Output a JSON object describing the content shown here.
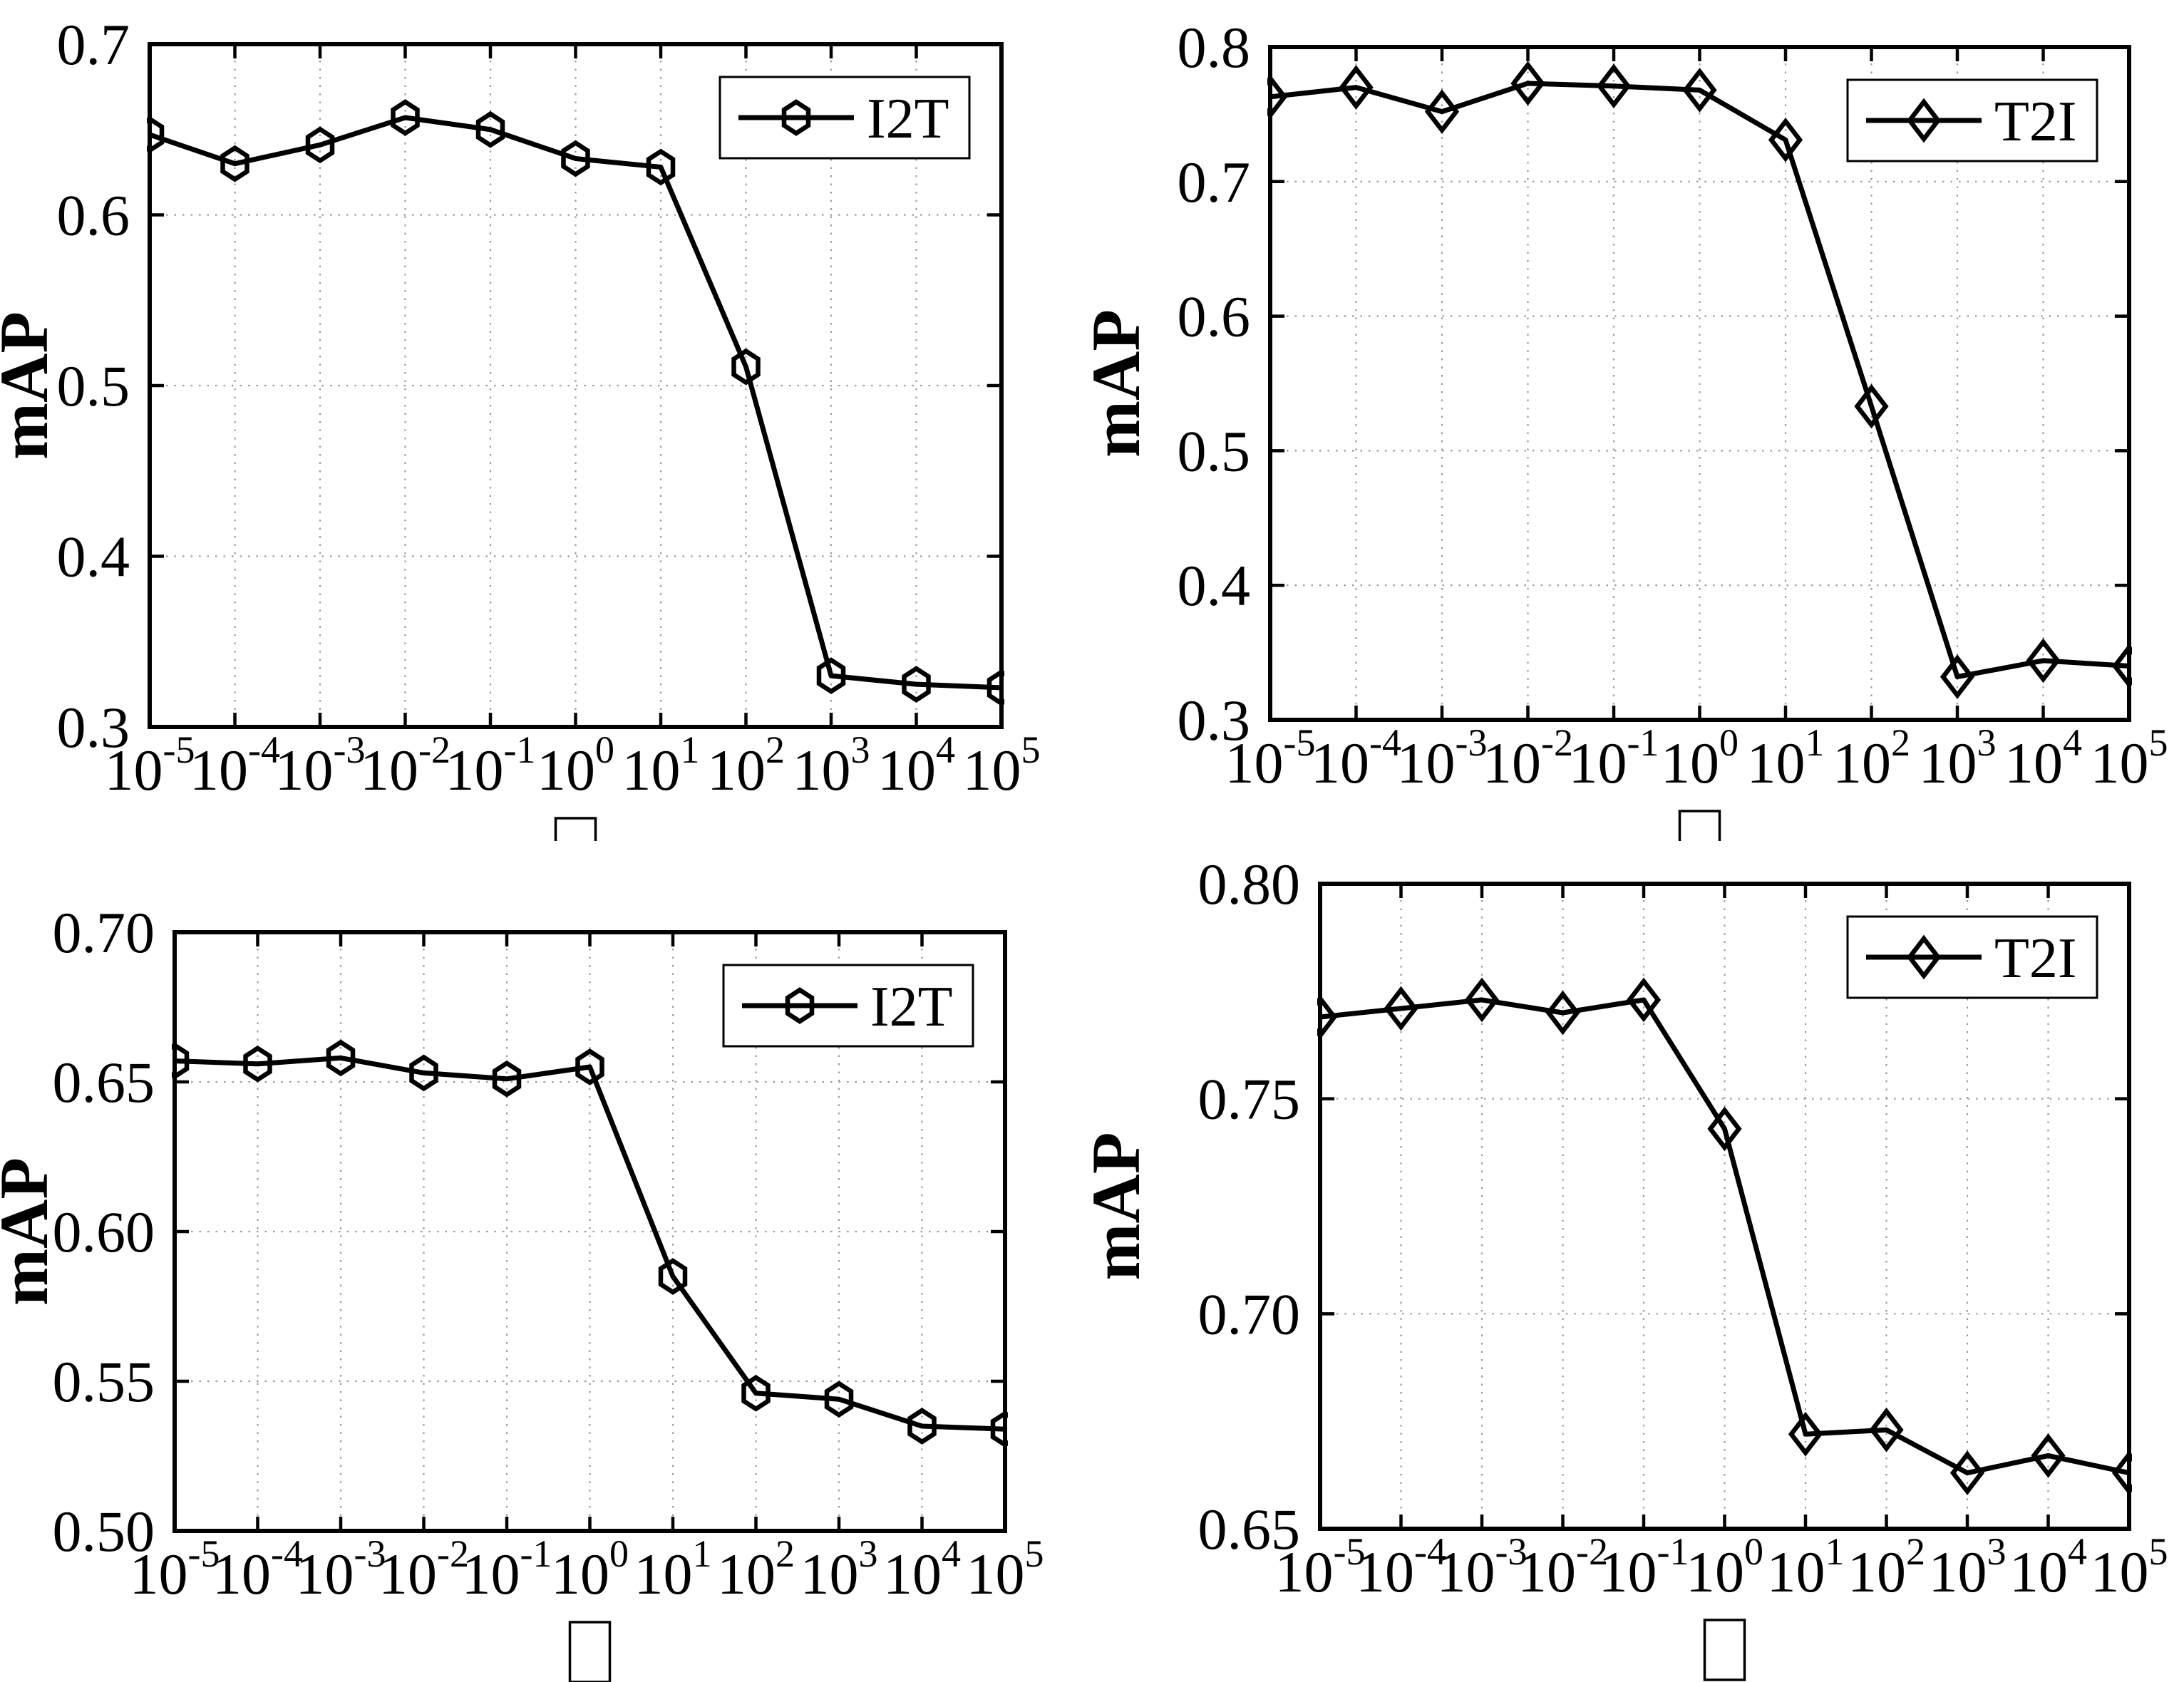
{
  "figure": {
    "background_color": "#ffffff",
    "line_color": "#000000",
    "grid_color": "#9a9a9a",
    "ylabel": "mAP",
    "x_tick_base": "10",
    "x_tick_exponents": [
      -5,
      -4,
      -3,
      -2,
      -1,
      0,
      1,
      2,
      3,
      4,
      5
    ],
    "xlabel_symbol": "□"
  },
  "chart_data": [
    {
      "id": "top-left",
      "type": "line",
      "legend": "I2T",
      "legend_position": "upper right",
      "marker": "hexagon",
      "ylabel": "mAP",
      "xlabel": "□",
      "x_scale": "log",
      "x": [
        1e-05,
        0.0001,
        0.001,
        0.01,
        0.1,
        1,
        10,
        100,
        1000,
        10000,
        100000
      ],
      "x_tick_labels": [
        "10^-5",
        "10^-4",
        "10^-3",
        "10^-2",
        "10^-1",
        "10^0",
        "10^1",
        "10^2",
        "10^3",
        "10^4",
        "10^5"
      ],
      "ylim": [
        0.3,
        0.7
      ],
      "y_tick_labels": [
        "0.3",
        "0.4",
        "0.5",
        "0.6",
        "0.7"
      ],
      "grid": true,
      "series": [
        {
          "name": "I2T",
          "values": [
            0.647,
            0.63,
            0.641,
            0.657,
            0.65,
            0.633,
            0.628,
            0.511,
            0.33,
            0.325,
            0.323
          ]
        }
      ]
    },
    {
      "id": "top-right",
      "type": "line",
      "legend": "T2I",
      "legend_position": "upper right",
      "marker": "diamond",
      "ylabel": "mAP",
      "xlabel": "□",
      "x_scale": "log",
      "x": [
        1e-05,
        0.0001,
        0.001,
        0.01,
        0.1,
        1,
        10,
        100,
        1000,
        10000,
        100000
      ],
      "x_tick_labels": [
        "10^-5",
        "10^-4",
        "10^-3",
        "10^-2",
        "10^-1",
        "10^0",
        "10^1",
        "10^2",
        "10^3",
        "10^4",
        "10^5"
      ],
      "ylim": [
        0.3,
        0.8
      ],
      "y_tick_labels": [
        "0.3",
        "0.4",
        "0.5",
        "0.6",
        "0.7",
        "0.8"
      ],
      "grid": true,
      "series": [
        {
          "name": "T2I",
          "values": [
            0.763,
            0.77,
            0.752,
            0.773,
            0.771,
            0.768,
            0.731,
            0.533,
            0.332,
            0.344,
            0.34
          ]
        }
      ]
    },
    {
      "id": "bottom-left",
      "type": "line",
      "legend": "I2T",
      "legend_position": "upper right",
      "marker": "hexagon",
      "ylabel": "mAP",
      "xlabel": "□",
      "x_scale": "log",
      "x": [
        1e-05,
        0.0001,
        0.001,
        0.01,
        0.1,
        1,
        10,
        100,
        1000,
        10000,
        100000
      ],
      "x_tick_labels": [
        "10^-5",
        "10^-4",
        "10^-3",
        "10^-2",
        "10^-1",
        "10^0",
        "10^1",
        "10^2",
        "10^3",
        "10^4",
        "10^5"
      ],
      "ylim": [
        0.5,
        0.7
      ],
      "y_tick_labels": [
        "0.50",
        "0.55",
        "0.60",
        "0.65",
        "0.70"
      ],
      "grid": true,
      "series": [
        {
          "name": "I2T",
          "values": [
            0.657,
            0.656,
            0.658,
            0.653,
            0.651,
            0.655,
            0.585,
            0.546,
            0.544,
            0.535,
            0.534
          ]
        }
      ]
    },
    {
      "id": "bottom-right",
      "type": "line",
      "legend": "T2I",
      "legend_position": "upper right",
      "marker": "diamond",
      "ylabel": "mAP",
      "xlabel": "□",
      "x_scale": "log",
      "x": [
        1e-05,
        0.0001,
        0.001,
        0.01,
        0.1,
        1,
        10,
        100,
        1000,
        10000,
        100000
      ],
      "x_tick_labels": [
        "10^-5",
        "10^-4",
        "10^-3",
        "10^-2",
        "10^-1",
        "10^0",
        "10^1",
        "10^2",
        "10^3",
        "10^4",
        "10^5"
      ],
      "ylim": [
        0.65,
        0.8
      ],
      "y_tick_labels": [
        "0.65",
        "0.70",
        "0.75",
        "0.80"
      ],
      "grid": true,
      "series": [
        {
          "name": "T2I",
          "values": [
            0.769,
            0.771,
            0.773,
            0.77,
            0.773,
            0.743,
            0.672,
            0.673,
            0.663,
            0.667,
            0.663
          ]
        }
      ]
    }
  ]
}
